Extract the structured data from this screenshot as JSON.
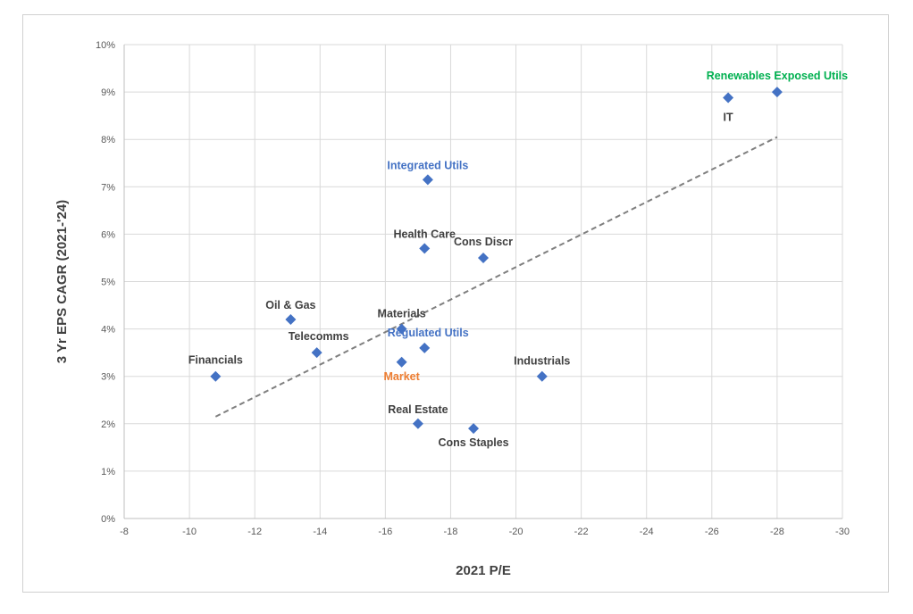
{
  "chart_data": {
    "type": "scatter",
    "xlabel": "2021 P/E",
    "ylabel": "3 Yr EPS CAGR (2021-'24)",
    "xlim": [
      -8,
      -30
    ],
    "ylim": [
      0,
      10
    ],
    "x_ticks": [
      "-8",
      "-10",
      "-12",
      "-14",
      "-16",
      "-18",
      "-20",
      "-22",
      "-24",
      "-26",
      "-28",
      "-30"
    ],
    "y_ticks": [
      "0%",
      "1%",
      "2%",
      "3%",
      "4%",
      "5%",
      "6%",
      "7%",
      "8%",
      "9%",
      "10%"
    ],
    "grid": true,
    "marker_color": "#4472c4",
    "points": [
      {
        "label": "Financials",
        "x": -10.8,
        "y": 3.0,
        "label_color": "#404040"
      },
      {
        "label": "Oil & Gas",
        "x": -13.1,
        "y": 4.2,
        "label_color": "#404040"
      },
      {
        "label": "Telecomms",
        "x": -13.9,
        "y": 3.5,
        "label_color": "#404040"
      },
      {
        "label": "Materials",
        "x": -16.5,
        "y": 4.0,
        "label_color": "#404040"
      },
      {
        "label": "Market",
        "x": -16.5,
        "y": 3.3,
        "label_color": "#ed7d31"
      },
      {
        "label": "Regulated Utils",
        "x": -17.2,
        "y": 3.6,
        "label_color": "#4472c4"
      },
      {
        "label": "Real Estate",
        "x": -17.0,
        "y": 2.0,
        "label_color": "#404040"
      },
      {
        "label": "Integrated Utils",
        "x": -17.3,
        "y": 7.15,
        "label_color": "#4472c4"
      },
      {
        "label": "Health Care",
        "x": -17.2,
        "y": 5.7,
        "label_color": "#404040"
      },
      {
        "label": "Cons Discr",
        "x": -19.0,
        "y": 5.5,
        "label_color": "#404040"
      },
      {
        "label": "Cons Staples",
        "x": -18.7,
        "y": 1.9,
        "label_color": "#404040"
      },
      {
        "label": "Industrials",
        "x": -20.8,
        "y": 3.0,
        "label_color": "#404040"
      },
      {
        "label": "IT",
        "x": -26.5,
        "y": 8.88,
        "label_color": "#404040"
      },
      {
        "label": "Renewables Exposed Utils",
        "x": -28.0,
        "y": 9.0,
        "label_color": "#00b050"
      }
    ],
    "trendline": {
      "x": [
        -10.8,
        -28.0
      ],
      "y": [
        2.15,
        8.05
      ],
      "color": "#7f7f7f",
      "style": "dashed"
    }
  }
}
